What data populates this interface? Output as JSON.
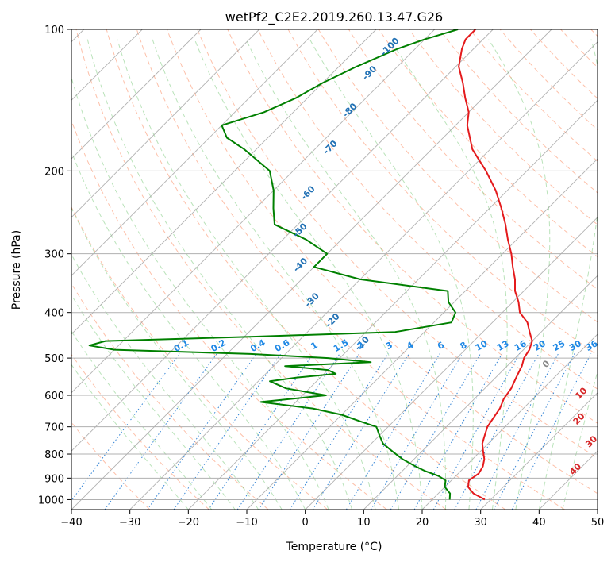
{
  "chart_data": {
    "type": "line",
    "title": "wetPf2_C2E2.2019.260.13.47.G26",
    "xlabel": "Temperature (°C)",
    "ylabel": "Pressure (hPa)",
    "xlim": [
      -40,
      50
    ],
    "ylim": [
      1050,
      100
    ],
    "y_scale": "log",
    "grid": true,
    "x_ticks": [
      "−40",
      "−30",
      "−20",
      "−10",
      "0",
      "10",
      "20",
      "30",
      "40",
      "50"
    ],
    "x_tick_values": [
      -40,
      -30,
      -20,
      -10,
      0,
      10,
      20,
      30,
      40,
      50
    ],
    "y_ticks": [
      "1000",
      "900",
      "800",
      "700",
      "600",
      "500",
      "400",
      "300",
      "200",
      "100"
    ],
    "y_tick_values": [
      1000,
      900,
      800,
      700,
      600,
      500,
      400,
      300,
      200,
      100
    ],
    "skew": true,
    "series": [
      {
        "color": "#e41a1c",
        "p": [
          1000,
          970,
          940,
          910,
          880,
          850,
          820,
          790,
          760,
          730,
          700,
          670,
          640,
          610,
          580,
          550,
          520,
          500,
          480,
          470,
          460,
          450,
          440,
          420,
          400,
          380,
          360,
          340,
          320,
          300,
          280,
          260,
          240,
          220,
          200,
          180,
          160,
          150,
          140,
          130,
          120,
          110,
          105,
          100
        ],
        "values": [
          29.0,
          26.0,
          24.0,
          23.0,
          23.5,
          23.0,
          22.0,
          20.5,
          19.0,
          18.0,
          17.0,
          16.5,
          16.0,
          15.0,
          14.5,
          13.5,
          12.5,
          11.5,
          11.0,
          10.5,
          10.0,
          9.0,
          8.0,
          6.0,
          3.0,
          1.0,
          -1.5,
          -3.5,
          -6.0,
          -8.5,
          -11.5,
          -14.5,
          -18.0,
          -22.0,
          -27.0,
          -33.0,
          -38.0,
          -40.0,
          -43.0,
          -46.0,
          -49.5,
          -52.0,
          -53.0,
          -53.0
        ]
      },
      {
        "color": "#008000",
        "p": [
          1000,
          970,
          940,
          910,
          890,
          870,
          850,
          820,
          790,
          760,
          730,
          700,
          680,
          660,
          640,
          620,
          600,
          580,
          560,
          550,
          540,
          530,
          520,
          510,
          500,
          490,
          480,
          470,
          460,
          450,
          440,
          420,
          400,
          380,
          360,
          340,
          320,
          300,
          280,
          260,
          240,
          220,
          200,
          180,
          170,
          160,
          150,
          140,
          130,
          120,
          110,
          105,
          100
        ],
        "values": [
          23.0,
          22.0,
          20.0,
          19.0,
          17.0,
          14.0,
          11.5,
          8.0,
          5.0,
          2.0,
          0.0,
          -2.0,
          -6.0,
          -10.0,
          -16.0,
          -26.0,
          -16.0,
          -24.0,
          -28.0,
          -24.0,
          -18.0,
          -20.0,
          -28.0,
          -14.0,
          -22.0,
          -36.0,
          -60.0,
          -65.0,
          -63.0,
          -38.0,
          -15.0,
          -7.0,
          -8.0,
          -11.0,
          -13.0,
          -30.0,
          -40.0,
          -40.0,
          -46.0,
          -54.0,
          -57.0,
          -60.0,
          -64.0,
          -72.0,
          -77.0,
          -80.0,
          -75.0,
          -72.0,
          -70.0,
          -67.0,
          -63.0,
          -60.0,
          -56.0
        ]
      }
    ],
    "adiabat_labels_dry": [
      "-100",
      "-90",
      "-80",
      "-70",
      "-60",
      "-50",
      "-40",
      "-30",
      "-20",
      "-10"
    ],
    "adiabat_labels_moist": [
      "0",
      "10",
      "20",
      "30",
      "40"
    ],
    "mixing_ratio_labels": [
      "0.1",
      "0.2",
      "0.4",
      "0.6",
      "1",
      "1.5",
      "2",
      "3",
      "4",
      "6",
      "8",
      "10",
      "13",
      "16",
      "20",
      "25",
      "30",
      "36"
    ],
    "colors": {
      "temperature": "#e41a1c",
      "dewpoint": "#008000",
      "dry_adiabat": "#fc8d62",
      "moist_adiabat": "#66c266",
      "mixing_ratio": "#1f78d1",
      "isotherm": "#9e9e9e",
      "dry_label": "#2171b5",
      "moist_label": "#d62728",
      "mixing_label": "#1e88e5"
    }
  }
}
